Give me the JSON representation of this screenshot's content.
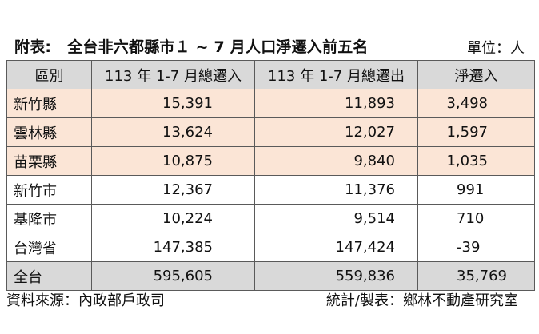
{
  "title": {
    "prefix": "附表:",
    "text": "全台非六都縣市１ ~ 7 月人口淨遷入前五名",
    "unit": "單位：人"
  },
  "table": {
    "headers": [
      "區別",
      "113 年 1-7 月總遷入",
      "113 年 1-7 月總遷出",
      "淨遷入"
    ],
    "rows": [
      {
        "region": "新竹縣",
        "in": "15,391",
        "out": "11,893",
        "net": "3,498"
      },
      {
        "region": "雲林縣",
        "in": "13,624",
        "out": "12,027",
        "net": "1,597"
      },
      {
        "region": "苗栗縣",
        "in": "10,875",
        "out": "9,840",
        "net": "1,035"
      },
      {
        "region": "新竹市",
        "in": "12,367",
        "out": "11,376",
        "net": "991"
      },
      {
        "region": "基隆市",
        "in": "10,224",
        "out": "9,514",
        "net": "710"
      },
      {
        "region": "台灣省",
        "in": "147,385",
        "out": "147,424",
        "net": "-39"
      },
      {
        "region": "全台",
        "in": "595,605",
        "out": "559,836",
        "net": "35,769"
      }
    ]
  },
  "footer": {
    "source": "資料來源：內政部戶政司",
    "producer": "統計/製表：鄉林不動產研究室"
  },
  "colors": {
    "highlight_rows": "#fbe5d6",
    "header_bg": "#d9d9d9",
    "total_bg": "#d9d9d9"
  }
}
